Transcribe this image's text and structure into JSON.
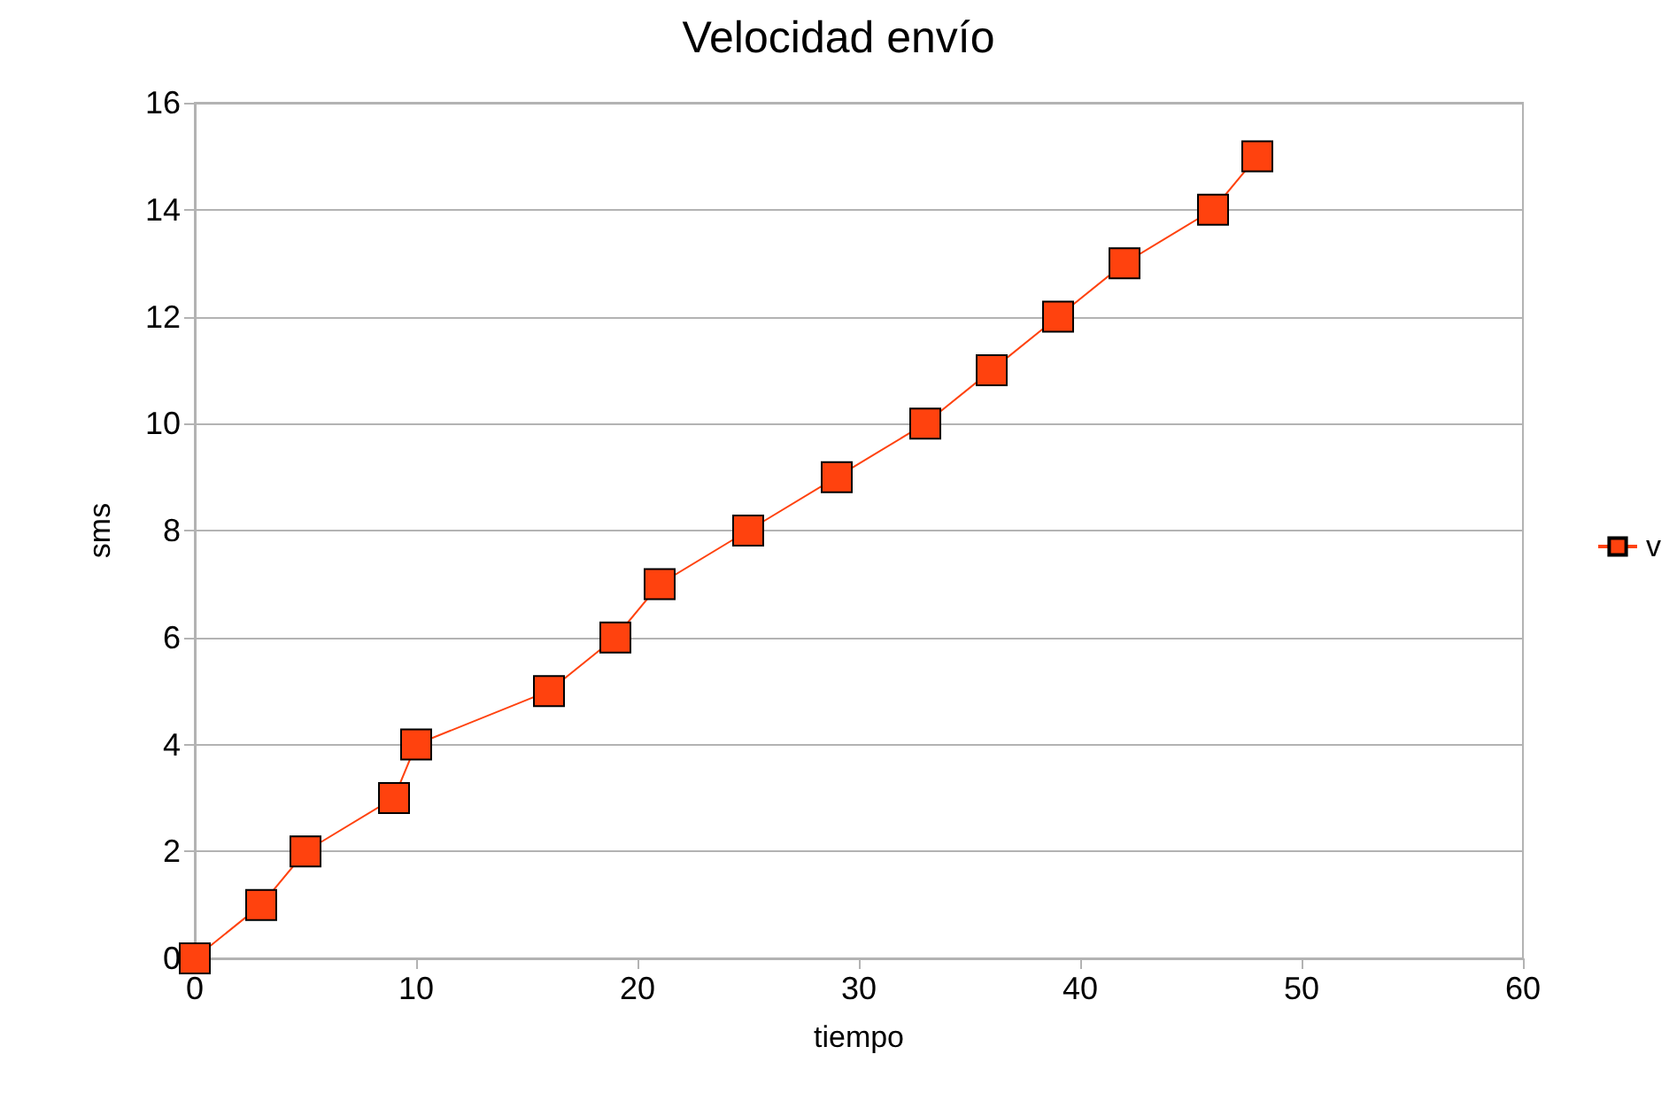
{
  "chart_data": {
    "type": "line",
    "title": "Velocidad envío",
    "xlabel": "tiempo",
    "ylabel": "sms",
    "x": [
      0,
      3,
      5,
      9,
      10,
      16,
      19,
      21,
      25,
      29,
      33,
      36,
      39,
      42,
      46,
      48
    ],
    "series": [
      {
        "name": "v",
        "color": "#ff420e",
        "values": [
          0,
          1,
          2,
          3,
          4,
          5,
          6,
          7,
          8,
          9,
          10,
          11,
          12,
          13,
          14,
          15
        ]
      }
    ],
    "xlim": [
      0,
      60
    ],
    "xticks": [
      0,
      10,
      20,
      30,
      40,
      50,
      60
    ],
    "ylim": [
      0,
      16
    ],
    "yticks": [
      0,
      2,
      4,
      6,
      8,
      10,
      12,
      14,
      16
    ],
    "grid": "y",
    "legend": "right",
    "marker": "square",
    "line_style": "solid"
  }
}
